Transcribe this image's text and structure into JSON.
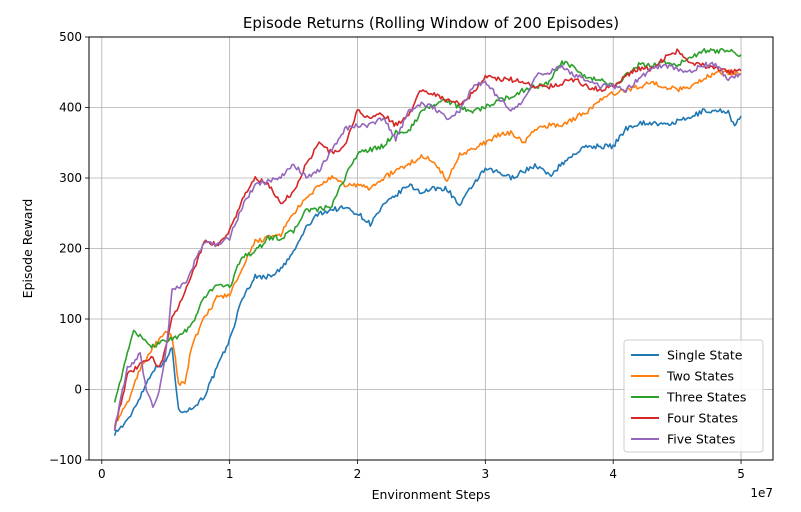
{
  "chart_data": {
    "type": "line",
    "title": "Episode Returns (Rolling Window of 200 Episodes)",
    "xlabel": "Environment Steps",
    "ylabel": "Episode Reward",
    "x_multiplier_label": "1e7",
    "xlim": [
      -0.1,
      5.25
    ],
    "ylim": [
      -100,
      500
    ],
    "xticks": [
      0,
      1,
      2,
      3,
      4,
      5
    ],
    "yticks": [
      -100,
      0,
      100,
      200,
      300,
      400,
      500
    ],
    "grid": true,
    "legend_position": "lower-right",
    "series": [
      {
        "name": "Single State",
        "color": "#1f77b4",
        "x": [
          0.1,
          0.2,
          0.3,
          0.4,
          0.5,
          0.55,
          0.6,
          0.7,
          0.8,
          0.9,
          1.0,
          1.1,
          1.2,
          1.3,
          1.4,
          1.5,
          1.6,
          1.7,
          1.8,
          1.9,
          2.0,
          2.1,
          2.2,
          2.3,
          2.4,
          2.5,
          2.6,
          2.7,
          2.8,
          2.9,
          3.0,
          3.1,
          3.2,
          3.3,
          3.4,
          3.5,
          3.6,
          3.7,
          3.8,
          3.9,
          4.0,
          4.1,
          4.2,
          4.3,
          4.4,
          4.5,
          4.6,
          4.7,
          4.8,
          4.9,
          4.95,
          5.0
        ],
        "y": [
          -62,
          -45,
          -10,
          28,
          40,
          60,
          -30,
          -28,
          -10,
          30,
          70,
          130,
          160,
          160,
          170,
          195,
          230,
          250,
          255,
          258,
          250,
          235,
          260,
          275,
          290,
          280,
          285,
          285,
          260,
          290,
          312,
          308,
          300,
          310,
          318,
          303,
          320,
          335,
          345,
          345,
          345,
          370,
          378,
          378,
          375,
          380,
          385,
          395,
          395,
          395,
          372,
          388
        ]
      },
      {
        "name": "Two States",
        "color": "#ff7f0e",
        "x": [
          0.1,
          0.2,
          0.3,
          0.4,
          0.5,
          0.55,
          0.6,
          0.65,
          0.7,
          0.8,
          0.9,
          1.0,
          1.1,
          1.2,
          1.3,
          1.4,
          1.5,
          1.6,
          1.7,
          1.8,
          1.9,
          2.0,
          2.1,
          2.2,
          2.3,
          2.4,
          2.5,
          2.6,
          2.7,
          2.8,
          2.9,
          3.0,
          3.1,
          3.2,
          3.3,
          3.4,
          3.5,
          3.6,
          3.7,
          3.8,
          3.9,
          4.0,
          4.1,
          4.2,
          4.3,
          4.4,
          4.5,
          4.6,
          4.7,
          4.8,
          4.9,
          5.0
        ],
        "y": [
          -50,
          -20,
          30,
          60,
          80,
          75,
          10,
          8,
          60,
          100,
          130,
          135,
          170,
          210,
          215,
          220,
          250,
          270,
          290,
          300,
          290,
          290,
          285,
          300,
          310,
          320,
          330,
          325,
          295,
          335,
          340,
          350,
          360,
          365,
          350,
          370,
          375,
          375,
          385,
          395,
          410,
          420,
          425,
          430,
          435,
          430,
          425,
          430,
          440,
          450,
          450,
          448
        ]
      },
      {
        "name": "Three States",
        "color": "#2ca02c",
        "x": [
          0.1,
          0.15,
          0.2,
          0.25,
          0.3,
          0.35,
          0.4,
          0.5,
          0.6,
          0.7,
          0.8,
          0.9,
          1.0,
          1.1,
          1.2,
          1.3,
          1.4,
          1.5,
          1.6,
          1.7,
          1.8,
          1.9,
          2.0,
          2.1,
          2.2,
          2.3,
          2.4,
          2.5,
          2.6,
          2.7,
          2.8,
          2.9,
          3.0,
          3.1,
          3.2,
          3.3,
          3.4,
          3.5,
          3.6,
          3.7,
          3.8,
          3.9,
          4.0,
          4.1,
          4.2,
          4.3,
          4.4,
          4.5,
          4.6,
          4.7,
          4.8,
          4.9,
          5.0
        ],
        "y": [
          -15,
          15,
          50,
          85,
          75,
          65,
          62,
          70,
          75,
          90,
          130,
          150,
          145,
          190,
          195,
          215,
          215,
          225,
          255,
          255,
          260,
          300,
          335,
          340,
          345,
          365,
          365,
          395,
          405,
          410,
          400,
          395,
          400,
          410,
          415,
          425,
          430,
          435,
          465,
          455,
          440,
          440,
          430,
          445,
          460,
          460,
          465,
          460,
          470,
          480,
          480,
          480,
          475
        ]
      },
      {
        "name": "Four States",
        "color": "#d62728",
        "x": [
          0.1,
          0.2,
          0.3,
          0.4,
          0.45,
          0.5,
          0.55,
          0.6,
          0.7,
          0.8,
          0.9,
          1.0,
          1.1,
          1.2,
          1.3,
          1.4,
          1.5,
          1.6,
          1.7,
          1.8,
          1.9,
          2.0,
          2.1,
          2.2,
          2.3,
          2.4,
          2.5,
          2.6,
          2.7,
          2.8,
          2.9,
          3.0,
          3.1,
          3.2,
          3.3,
          3.4,
          3.5,
          3.6,
          3.7,
          3.8,
          3.9,
          4.0,
          4.1,
          4.2,
          4.3,
          4.4,
          4.5,
          4.6,
          4.7,
          4.8,
          4.9,
          5.0
        ],
        "y": [
          -55,
          20,
          35,
          45,
          30,
          60,
          100,
          120,
          160,
          210,
          205,
          225,
          270,
          300,
          290,
          265,
          280,
          320,
          350,
          335,
          345,
          395,
          385,
          390,
          375,
          390,
          425,
          420,
          410,
          405,
          420,
          445,
          440,
          440,
          435,
          430,
          430,
          435,
          440,
          430,
          425,
          430,
          445,
          455,
          455,
          470,
          480,
          465,
          460,
          455,
          450,
          452
        ]
      },
      {
        "name": "Five States",
        "color": "#9467bd",
        "x": [
          0.1,
          0.2,
          0.3,
          0.35,
          0.4,
          0.45,
          0.5,
          0.55,
          0.6,
          0.65,
          0.7,
          0.8,
          0.9,
          1.0,
          1.1,
          1.2,
          1.3,
          1.4,
          1.5,
          1.6,
          1.7,
          1.8,
          1.9,
          2.0,
          2.1,
          2.2,
          2.3,
          2.4,
          2.5,
          2.6,
          2.7,
          2.8,
          2.9,
          3.0,
          3.1,
          3.2,
          3.3,
          3.4,
          3.5,
          3.6,
          3.7,
          3.8,
          3.9,
          4.0,
          4.1,
          4.2,
          4.3,
          4.4,
          4.5,
          4.6,
          4.7,
          4.8,
          4.9,
          5.0
        ],
        "y": [
          -55,
          30,
          50,
          0,
          -25,
          0,
          50,
          140,
          145,
          150,
          170,
          210,
          205,
          215,
          260,
          290,
          295,
          300,
          320,
          300,
          310,
          340,
          370,
          375,
          375,
          385,
          355,
          395,
          405,
          400,
          385,
          395,
          430,
          435,
          415,
          395,
          410,
          445,
          450,
          460,
          445,
          440,
          430,
          430,
          425,
          440,
          455,
          460,
          455,
          450,
          460,
          462,
          440,
          447
        ]
      }
    ]
  }
}
